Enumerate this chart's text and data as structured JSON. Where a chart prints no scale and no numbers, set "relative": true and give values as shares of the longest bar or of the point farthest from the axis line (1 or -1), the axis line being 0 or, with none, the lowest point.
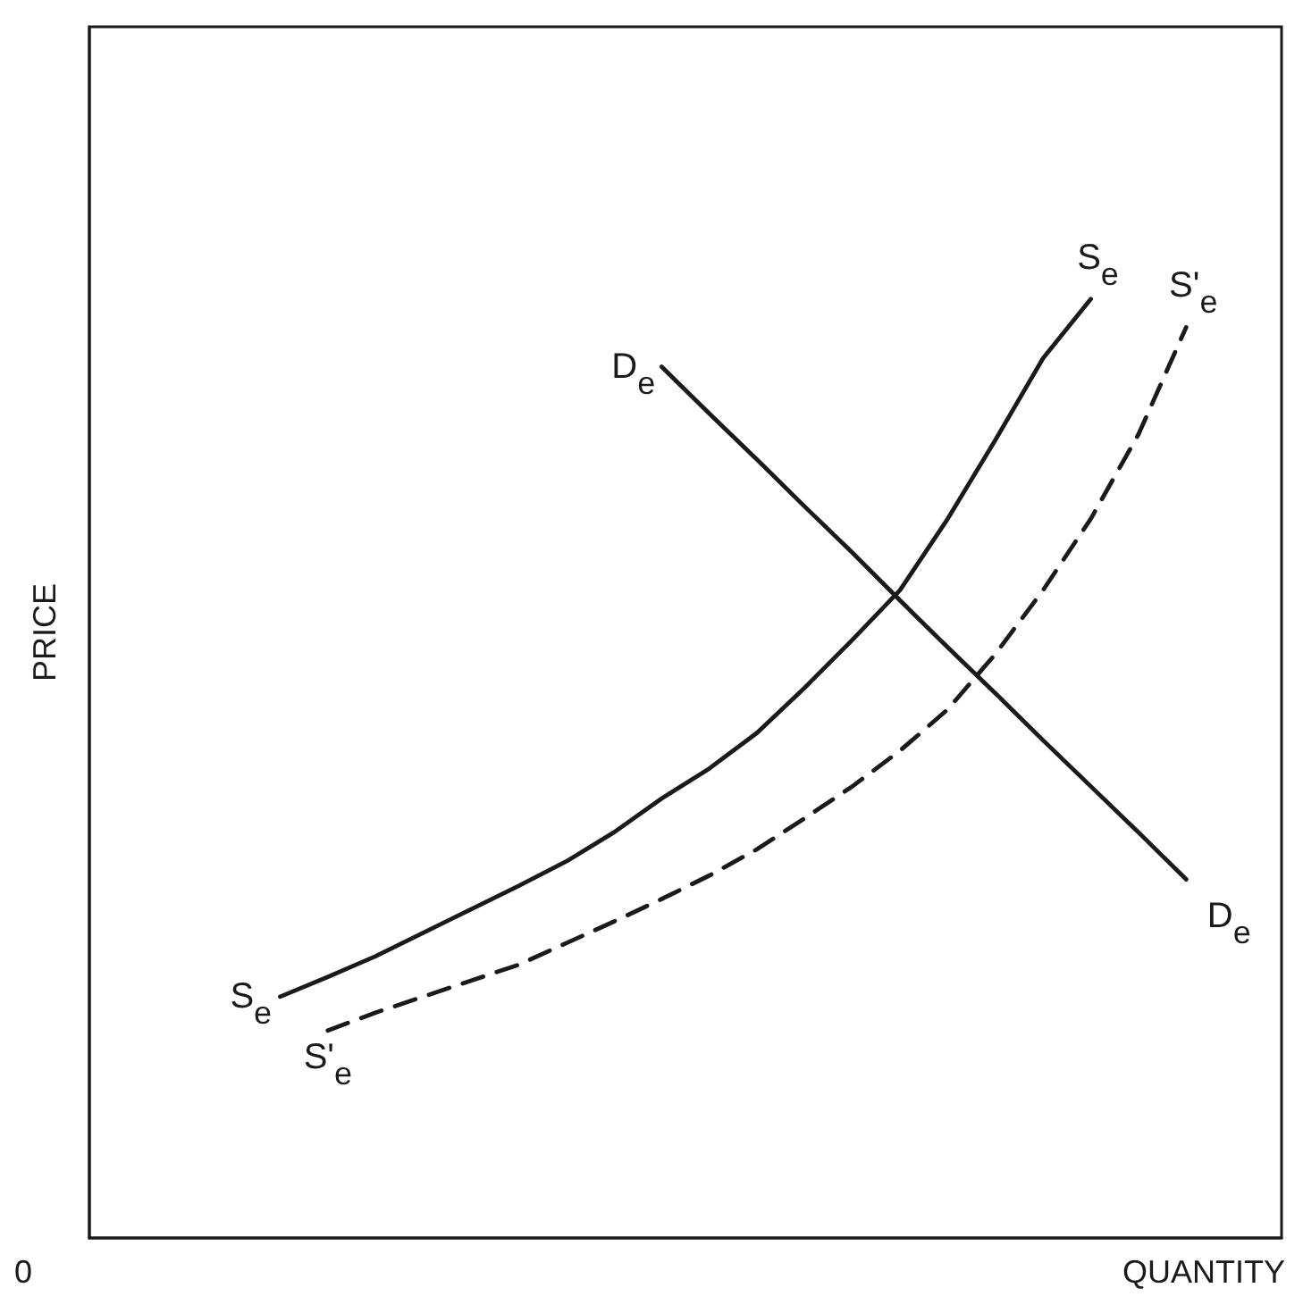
{
  "chart_data": {
    "type": "line",
    "relative": true,
    "xlabel": "QUANTITY",
    "ylabel": "PRICE",
    "categories": [
      null,
      null,
      null,
      null,
      null,
      null,
      null,
      null,
      null,
      null,
      null,
      null,
      null,
      null,
      null,
      null,
      null,
      null,
      null,
      null,
      null,
      null,
      null,
      null,
      null,
      null
    ],
    "series": [
      {
        "name": "S$_{e}$",
        "color": "#1a1a1a",
        "line_style": "solid",
        "values": [
          null,
          null,
          null,
          null,
          0.257,
          0.278,
          0.3,
          0.325,
          0.35,
          0.375,
          0.401,
          0.432,
          0.468,
          0.5,
          0.538,
          0.586,
          0.637,
          0.69,
          0.766,
          0.85,
          0.937,
          1.0,
          null,
          null,
          null,
          null
        ]
      },
      {
        "name": "S'$_{e}$",
        "color": "#1a1a1a",
        "line_style": "dashed",
        "values": [
          null,
          null,
          null,
          null,
          null,
          0.221,
          0.24,
          0.257,
          0.274,
          0.291,
          0.314,
          0.337,
          0.361,
          0.386,
          0.414,
          0.447,
          0.481,
          0.519,
          0.563,
          0.622,
          0.69,
          0.766,
          0.856,
          0.97,
          null,
          null
        ]
      },
      {
        "name": "D$_{e}$",
        "color": "#1a1a1a",
        "line_style": "solid",
        "values": [
          null,
          null,
          null,
          null,
          null,
          null,
          null,
          null,
          null,
          null,
          null,
          null,
          0.928,
          0.878,
          0.829,
          0.779,
          0.73,
          0.679,
          0.629,
          0.58,
          0.53,
          0.481,
          0.432,
          0.382,
          null,
          null
        ]
      }
    ],
    "annotations": [
      "0",
      "S$_{e}$",
      "S'$_{e}$",
      "D$_{e}$"
    ],
    "grid": false,
    "legend": false,
    "marker": "none"
  }
}
